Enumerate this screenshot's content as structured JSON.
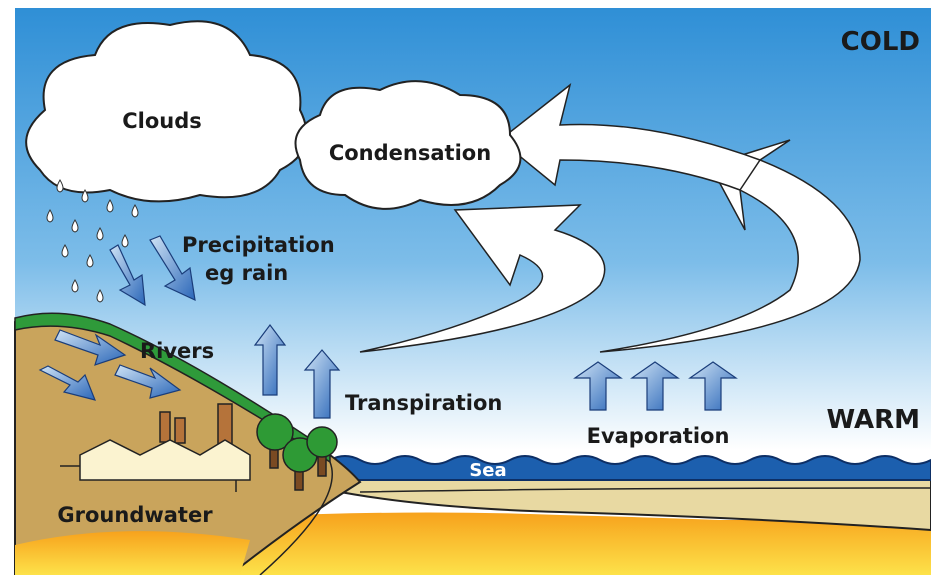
{
  "labels": {
    "cold": "COLD",
    "warm": "WARM",
    "clouds": "Clouds",
    "condensation": "Condensation",
    "precipitation": [
      "Precipitation",
      "eg rain"
    ],
    "rivers": "Rivers",
    "transpiration": "Transpiration",
    "evaporation": "Evaporation",
    "sea": "Sea",
    "groundwater": "Groundwater"
  }
}
